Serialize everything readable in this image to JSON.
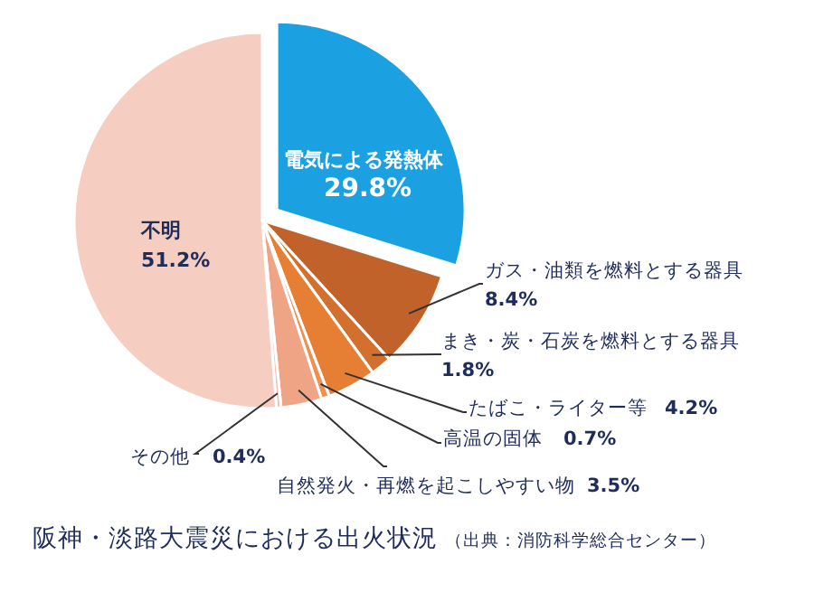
{
  "chart_data": {
    "type": "pie",
    "title": "阪神・淡路大震災における出火状況",
    "annotations": [
      "（出典：消防科学総合センター）"
    ],
    "categories": [
      "電気による発熱体",
      "ガス・油類を燃料とする器具",
      "まき・炭・石炭を燃料とする器具",
      "たばこ・ライター等",
      "高温の固体",
      "自然発火・再燃を起こしやすい物",
      "その他",
      "不明"
    ],
    "values": [
      29.8,
      8.4,
      1.8,
      4.2,
      0.7,
      3.5,
      0.4,
      51.2
    ],
    "value_labels": [
      "29.8%",
      "8.4%",
      "1.8%",
      "4.2%",
      "0.7%",
      "3.5%",
      "0.4%",
      "51.2%"
    ],
    "colors": [
      "#1ba1e2",
      "#c0622a",
      "#d4702e",
      "#e67e34",
      "#ee9050",
      "#f0a486",
      "#f6bfae",
      "#f6cdc1"
    ],
    "legend": false
  }
}
